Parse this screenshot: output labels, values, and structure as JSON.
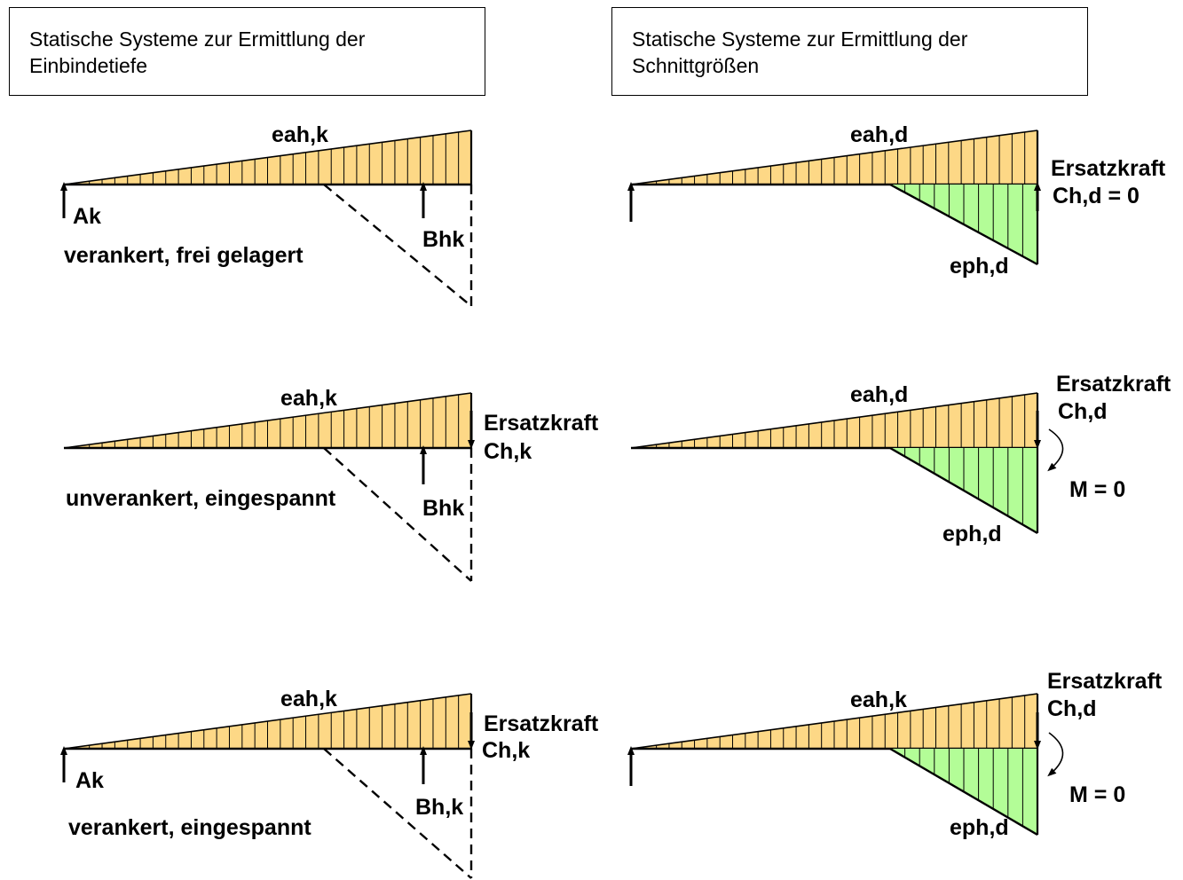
{
  "headers": {
    "left": {
      "line1": "Statische Systeme zur Ermittlung der",
      "line2": "Einbindetiefe"
    },
    "right": {
      "line1": "Statische Systeme zur Ermittlung der",
      "line2": "Schnittgrößen"
    }
  },
  "colors": {
    "active": "#fdd886",
    "passive": "#b3fd97",
    "stroke": "#000000"
  },
  "left": {
    "row1": {
      "load": "eah,k",
      "anchor": "Ak",
      "support": "Bhk",
      "caption": "verankert, frei gelagert"
    },
    "row2": {
      "load": "eah,k",
      "force_line1": "Ersatzkraft",
      "force_line2": "Ch,k",
      "support": "Bhk",
      "caption": "unverankert, eingespannt"
    },
    "row3": {
      "load": "eah,k",
      "force_line1": "Ersatzkraft",
      "force_line2": "Ch,k",
      "anchor": "Ak",
      "support": "Bh,k",
      "caption": "verankert, eingespannt"
    }
  },
  "right": {
    "row1": {
      "load": "eah,d",
      "force_line1": "Ersatzkraft",
      "force_line2": "Ch,d = 0",
      "passive": "eph,d"
    },
    "row2": {
      "load": "eah,d",
      "force_line1": "Ersatzkraft",
      "force_line2": "Ch,d",
      "moment": "M = 0",
      "passive": "eph,d"
    },
    "row3": {
      "load": "eah,k",
      "force_line1": "Ersatzkraft",
      "force_line2": "Ch,d",
      "moment": "M = 0",
      "passive": "eph,d"
    }
  }
}
